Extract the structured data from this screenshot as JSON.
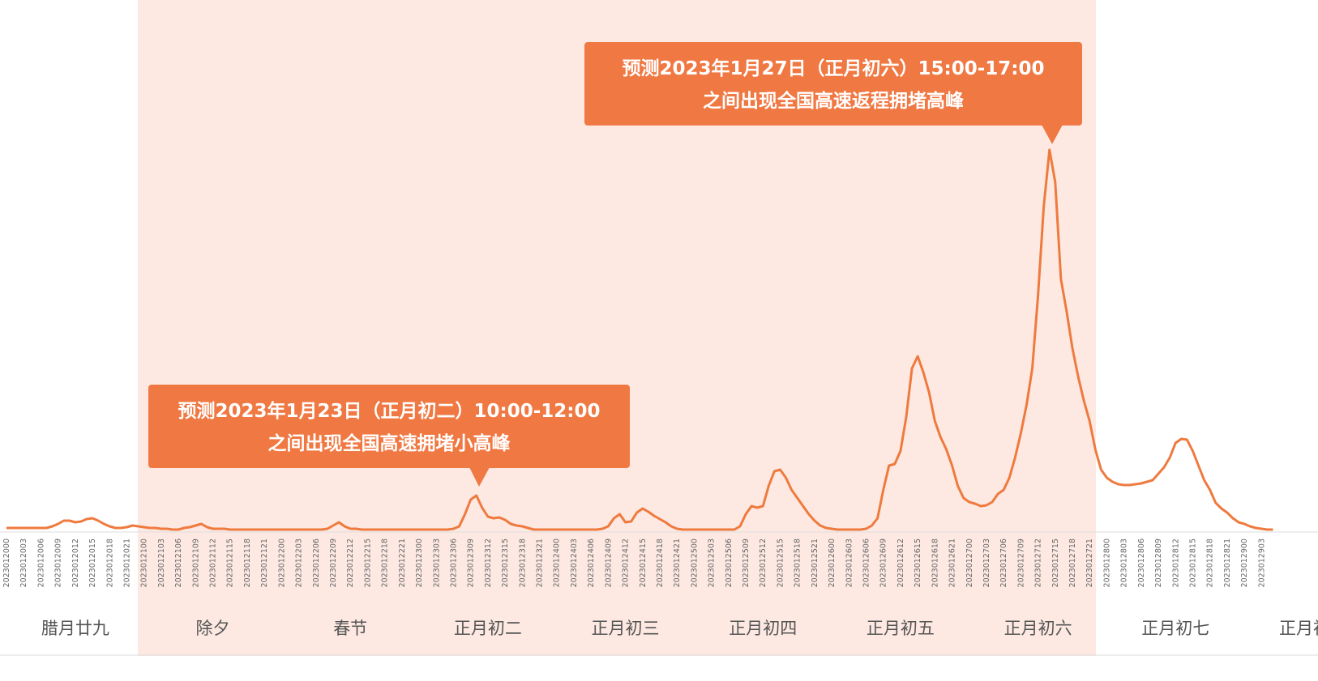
{
  "chart_data": {
    "type": "line",
    "categories": [
      "2023012000",
      null,
      null,
      "2023012003",
      null,
      null,
      "2023012006",
      null,
      null,
      "2023012009",
      null,
      null,
      "2023012012",
      null,
      null,
      "2023012015",
      null,
      null,
      "2023012018",
      null,
      null,
      "2023012021",
      null,
      null,
      "2023012100",
      null,
      null,
      "2023012103",
      null,
      null,
      "2023012106",
      null,
      null,
      "2023012109",
      null,
      null,
      "2023012112",
      null,
      null,
      "2023012115",
      null,
      null,
      "2023012118",
      null,
      null,
      "2023012121",
      null,
      null,
      "2023012200",
      null,
      null,
      "2023012203",
      null,
      null,
      "2023012206",
      null,
      null,
      "2023012209",
      null,
      null,
      "2023012212",
      null,
      null,
      "2023012215",
      null,
      null,
      "2023012218",
      null,
      null,
      "2023012221",
      null,
      null,
      "2023012300",
      null,
      null,
      "2023012303",
      null,
      null,
      "2023012306",
      null,
      null,
      "2023012309",
      null,
      null,
      "2023012312",
      null,
      null,
      "2023012315",
      null,
      null,
      "2023012318",
      null,
      null,
      "2023012321",
      null,
      null,
      "2023012400",
      null,
      null,
      "2023012403",
      null,
      null,
      "2023012406",
      null,
      null,
      "2023012409",
      null,
      null,
      "2023012412",
      null,
      null,
      "2023012415",
      null,
      null,
      "2023012418",
      null,
      null,
      "2023012421",
      null,
      null,
      "2023012500",
      null,
      null,
      "2023012503",
      null,
      null,
      "2023012506",
      null,
      null,
      "2023012509",
      null,
      null,
      "2023012512",
      null,
      null,
      "2023012515",
      null,
      null,
      "2023012518",
      null,
      null,
      "2023012521",
      null,
      null,
      "2023012600",
      null,
      null,
      "2023012603",
      null,
      null,
      "2023012606",
      null,
      null,
      "2023012609",
      null,
      null,
      "2023012612",
      null,
      null,
      "2023012615",
      null,
      null,
      "2023012618",
      null,
      null,
      "2023012621",
      null,
      null,
      "2023012700",
      null,
      null,
      "2023012703",
      null,
      null,
      "2023012706",
      null,
      null,
      "2023012709",
      null,
      null,
      "2023012712",
      null,
      null,
      "2023012715",
      null,
      null,
      "2023012718",
      null,
      null,
      "2023012721",
      null,
      null,
      "2023012800",
      null,
      null,
      "2023012803",
      null,
      null,
      "2023012806",
      null,
      null,
      "2023012809",
      null,
      null,
      "2023012812",
      null,
      null,
      "2023012815",
      null,
      null,
      "2023012818",
      null,
      null,
      "2023012821",
      null,
      null,
      "2023012900",
      null,
      null,
      "2023012903",
      null,
      null
    ],
    "values": [
      0.3,
      0.3,
      0.3,
      0.3,
      0.3,
      0.3,
      0.3,
      0.3,
      0.5,
      0.8,
      1.2,
      1.2,
      1.0,
      1.1,
      1.4,
      1.5,
      1.2,
      0.8,
      0.5,
      0.3,
      0.3,
      0.4,
      0.6,
      0.5,
      0.4,
      0.3,
      0.3,
      0.2,
      0.2,
      0.1,
      0.1,
      0.3,
      0.4,
      0.6,
      0.8,
      0.4,
      0.2,
      0.2,
      0.2,
      0.1,
      0.1,
      0.1,
      0.1,
      0.1,
      0.1,
      0.1,
      0.1,
      0.1,
      0.1,
      0.1,
      0.1,
      0.1,
      0.1,
      0.1,
      0.1,
      0.1,
      0.2,
      0.6,
      1.0,
      0.5,
      0.2,
      0.2,
      0.1,
      0.1,
      0.1,
      0.1,
      0.1,
      0.1,
      0.1,
      0.1,
      0.1,
      0.1,
      0.1,
      0.1,
      0.1,
      0.1,
      0.1,
      0.1,
      0.2,
      0.5,
      2.0,
      3.8,
      4.3,
      2.8,
      1.7,
      1.5,
      1.6,
      1.3,
      0.8,
      0.6,
      0.5,
      0.3,
      0.1,
      0.1,
      0.1,
      0.1,
      0.1,
      0.1,
      0.1,
      0.1,
      0.1,
      0.1,
      0.1,
      0.1,
      0.2,
      0.5,
      1.5,
      2.0,
      1.0,
      1.1,
      2.2,
      2.7,
      2.3,
      1.8,
      1.4,
      1.0,
      0.5,
      0.2,
      0.1,
      0.1,
      0.1,
      0.1,
      0.1,
      0.1,
      0.1,
      0.1,
      0.1,
      0.1,
      0.5,
      2.0,
      3.0,
      2.8,
      3.0,
      5.5,
      7.3,
      7.5,
      6.5,
      5.0,
      4.0,
      3.0,
      2.0,
      1.2,
      0.6,
      0.3,
      0.2,
      0.1,
      0.1,
      0.1,
      0.1,
      0.1,
      0.2,
      0.6,
      1.5,
      5.0,
      8.0,
      8.2,
      9.8,
      14,
      20,
      21.5,
      19.5,
      17,
      13.5,
      11.5,
      10,
      8,
      5.5,
      4.0,
      3.5,
      3.3,
      3.0,
      3.1,
      3.5,
      4.5,
      5.0,
      6.5,
      9,
      12,
      15.5,
      20,
      29,
      40,
      47,
      43,
      31,
      27,
      22.5,
      19,
      16,
      13.5,
      10,
      7.5,
      6.5,
      6.0,
      5.7,
      5.6,
      5.6,
      5.7,
      5.8,
      6.0,
      6.2,
      7.0,
      7.8,
      9.0,
      10.8,
      11.3,
      11.2,
      9.8,
      8.0,
      6.2,
      5.0,
      3.4,
      2.7,
      2.2,
      1.5,
      1.0,
      0.8,
      0.5,
      0.3,
      0.2,
      0.1,
      0.1
    ],
    "color": "#ef7a3e",
    "ylim": [
      0,
      60
    ],
    "day_labels": [
      "腊月廿九",
      "除夕",
      "春节",
      "正月初二",
      "正月初三",
      "正月初四",
      "正月初五",
      "正月初六",
      "正月初七",
      "正月初八"
    ],
    "annotations": [
      {
        "lines": [
          "预测2023年1月23日（正月初二）10:00-12:00",
          "之间出现全国高速拥堵小高峰"
        ]
      },
      {
        "lines": [
          "预测2023年1月27日（正月初六）15:00-17:00",
          "之间出现全国高速返程拥堵高峰"
        ]
      }
    ]
  }
}
